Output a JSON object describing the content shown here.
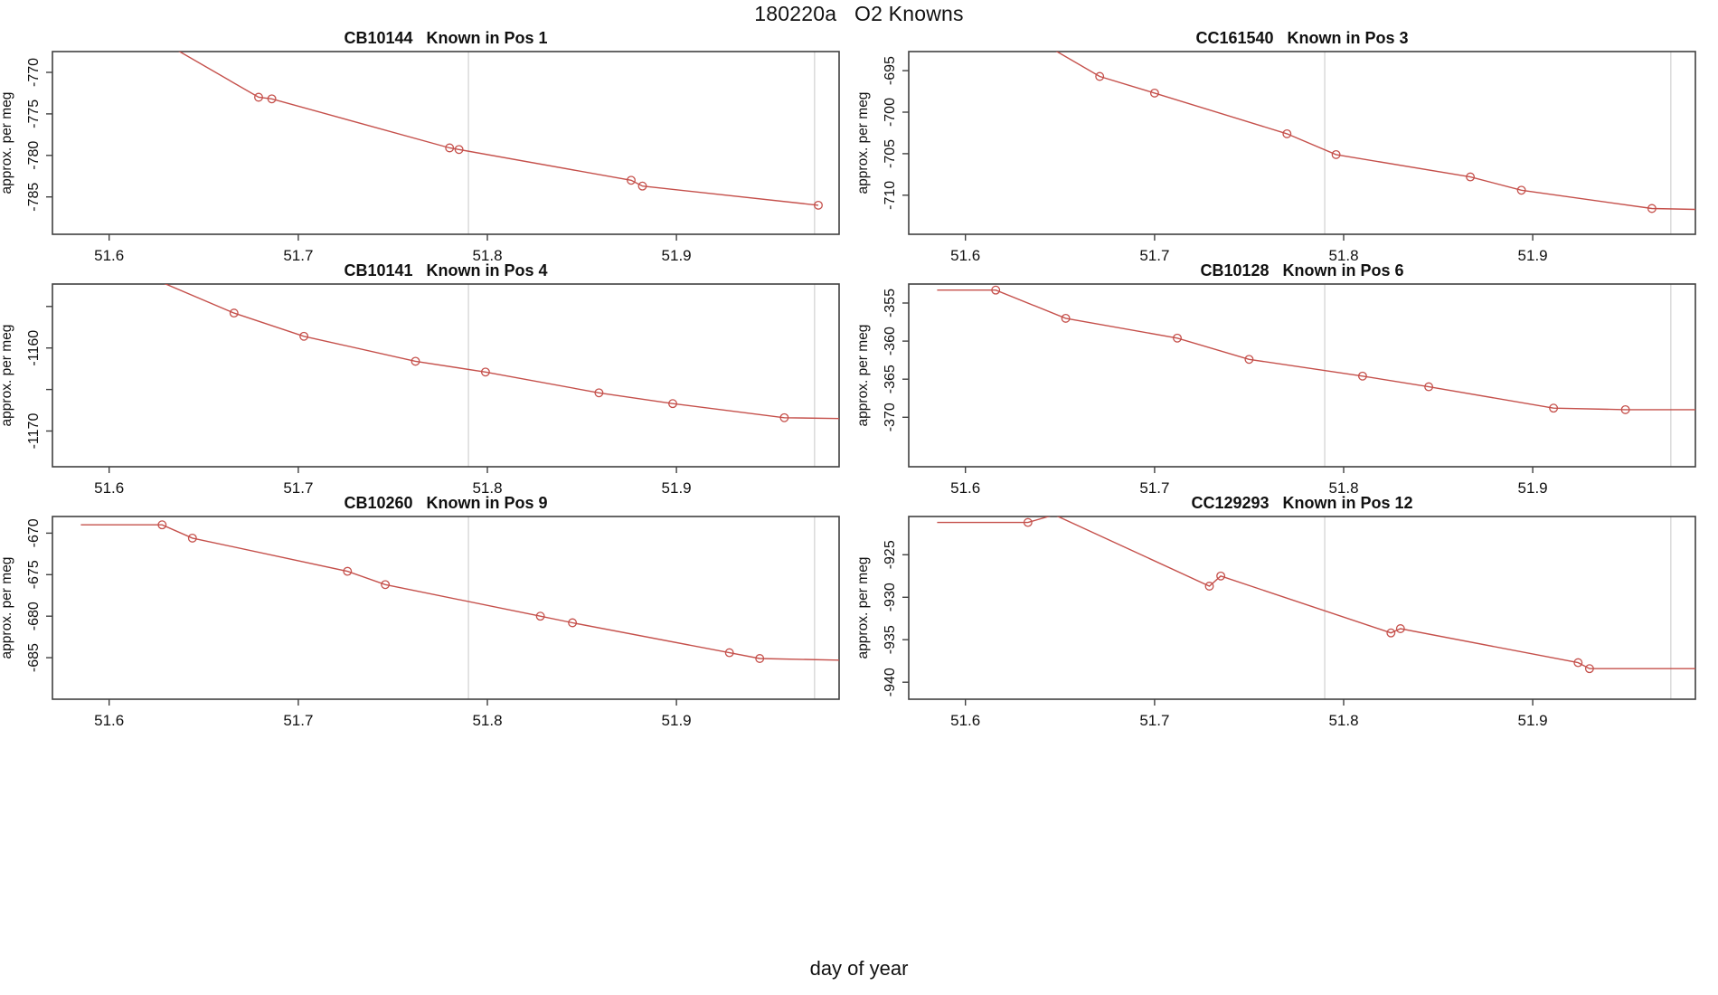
{
  "header": {
    "title": "180220a   O2 Knowns"
  },
  "footer": {
    "xlabel": "day of year"
  },
  "colors": {
    "line": "#C5504B",
    "grid": "#DCDCDC",
    "box": "#404040",
    "text": "#111111",
    "background": "#FFFFFF"
  },
  "chart_data": [
    {
      "type": "line",
      "id": "CB10144",
      "position_label": "Known in Pos 1",
      "title": "CB10144   Known in Pos 1",
      "ylabel": "approx. per meg",
      "grid_position": {
        "row": 0,
        "col": 0
      },
      "xlim": [
        51.57,
        51.986
      ],
      "ylim": [
        -789.5,
        -767.5
      ],
      "xticks": [
        51.6,
        51.7,
        51.8,
        51.9
      ],
      "xtick_labels": [
        "51.6",
        "51.7",
        "51.8",
        "51.9"
      ],
      "yticks": [
        -785,
        -780,
        -775,
        -770
      ],
      "ytick_labels": [
        "-785",
        "-780",
        "-775",
        "-770"
      ],
      "gridlines_x": [
        51.79,
        51.973
      ],
      "line": [
        [
          51.6,
          -762.6
        ],
        [
          51.679,
          -773.0
        ],
        [
          51.686,
          -773.2
        ],
        [
          51.78,
          -779.1
        ],
        [
          51.785,
          -779.3
        ],
        [
          51.876,
          -783.0
        ],
        [
          51.882,
          -783.7
        ],
        [
          51.975,
          -786.0
        ]
      ],
      "markers": [
        [
          51.679,
          -773.0
        ],
        [
          51.686,
          -773.2
        ],
        [
          51.78,
          -779.1
        ],
        [
          51.785,
          -779.3
        ],
        [
          51.876,
          -783.0
        ],
        [
          51.882,
          -783.7
        ],
        [
          51.975,
          -786.0
        ]
      ]
    },
    {
      "type": "line",
      "id": "CC161540",
      "position_label": "Known in Pos 3",
      "title": "CC161540   Known in Pos 3",
      "ylabel": "approx. per meg",
      "grid_position": {
        "row": 0,
        "col": 1
      },
      "xlim": [
        51.57,
        51.986
      ],
      "ylim": [
        -714.7,
        -692.7
      ],
      "xticks": [
        51.6,
        51.7,
        51.8,
        51.9
      ],
      "xtick_labels": [
        "51.6",
        "51.7",
        "51.8",
        "51.9"
      ],
      "yticks": [
        -710,
        -705,
        -700,
        -695
      ],
      "ytick_labels": [
        "-710",
        "-705",
        "-700",
        "-695"
      ],
      "gridlines_x": [
        51.79,
        51.973
      ],
      "line": [
        [
          51.6,
          -686.3
        ],
        [
          51.671,
          -695.7
        ],
        [
          51.7,
          -697.7
        ],
        [
          51.77,
          -702.6
        ],
        [
          51.796,
          -705.1
        ],
        [
          51.867,
          -707.8
        ],
        [
          51.894,
          -709.4
        ],
        [
          51.963,
          -711.6
        ],
        [
          51.986,
          -711.7
        ]
      ],
      "markers": [
        [
          51.671,
          -695.7
        ],
        [
          51.7,
          -697.7
        ],
        [
          51.77,
          -702.6
        ],
        [
          51.796,
          -705.1
        ],
        [
          51.867,
          -707.8
        ],
        [
          51.894,
          -709.4
        ],
        [
          51.963,
          -711.6
        ]
      ]
    },
    {
      "type": "line",
      "id": "CB10141",
      "position_label": "Known in Pos 4",
      "title": "CB10141   Known in Pos 4",
      "ylabel": "approx. per meg",
      "grid_position": {
        "row": 1,
        "col": 0
      },
      "xlim": [
        51.57,
        51.986
      ],
      "ylim": [
        -1174.3,
        -1152.3
      ],
      "xticks": [
        51.6,
        51.7,
        51.8,
        51.9
      ],
      "xtick_labels": [
        "51.6",
        "51.7",
        "51.8",
        "51.9"
      ],
      "yticks": [
        -1170,
        -1165,
        -1160,
        -1155
      ],
      "ytick_labels": [
        "-1170",
        "",
        "-1160",
        ""
      ],
      "gridlines_x": [
        51.79,
        51.973
      ],
      "line": [
        [
          51.6,
          -1149.4
        ],
        [
          51.666,
          -1155.8
        ],
        [
          51.703,
          -1158.6
        ],
        [
          51.762,
          -1161.6
        ],
        [
          51.799,
          -1162.9
        ],
        [
          51.859,
          -1165.4
        ],
        [
          51.898,
          -1166.7
        ],
        [
          51.957,
          -1168.4
        ],
        [
          51.986,
          -1168.5
        ]
      ],
      "markers": [
        [
          51.666,
          -1155.8
        ],
        [
          51.703,
          -1158.6
        ],
        [
          51.762,
          -1161.6
        ],
        [
          51.799,
          -1162.9
        ],
        [
          51.859,
          -1165.4
        ],
        [
          51.898,
          -1166.7
        ],
        [
          51.957,
          -1168.4
        ]
      ]
    },
    {
      "type": "line",
      "id": "CB10128",
      "position_label": "Known in Pos 6",
      "title": "CB10128   Known in Pos 6",
      "ylabel": "approx. per meg",
      "grid_position": {
        "row": 1,
        "col": 1
      },
      "xlim": [
        51.57,
        51.986
      ],
      "ylim": [
        -376.5,
        -352.5
      ],
      "xticks": [
        51.6,
        51.7,
        51.8,
        51.9
      ],
      "xtick_labels": [
        "51.6",
        "51.7",
        "51.8",
        "51.9"
      ],
      "yticks": [
        -370,
        -365,
        -360,
        -355
      ],
      "ytick_labels": [
        "-370",
        "-365",
        "-360",
        "-355"
      ],
      "gridlines_x": [
        51.79,
        51.973
      ],
      "line": [
        [
          51.585,
          -353.3
        ],
        [
          51.616,
          -353.3
        ],
        [
          51.653,
          -357.0
        ],
        [
          51.712,
          -359.6
        ],
        [
          51.75,
          -362.4
        ],
        [
          51.81,
          -364.6
        ],
        [
          51.845,
          -366.0
        ],
        [
          51.911,
          -368.8
        ],
        [
          51.949,
          -369.0
        ],
        [
          51.986,
          -369.0
        ]
      ],
      "markers": [
        [
          51.616,
          -353.3
        ],
        [
          51.653,
          -357.0
        ],
        [
          51.712,
          -359.6
        ],
        [
          51.75,
          -362.4
        ],
        [
          51.81,
          -364.6
        ],
        [
          51.845,
          -366.0
        ],
        [
          51.911,
          -368.8
        ],
        [
          51.949,
          -369.0
        ]
      ]
    },
    {
      "type": "line",
      "id": "CB10260",
      "position_label": "Known in Pos 9",
      "title": "CB10260   Known in Pos 9",
      "ylabel": "approx. per meg",
      "grid_position": {
        "row": 2,
        "col": 0
      },
      "xlim": [
        51.57,
        51.986
      ],
      "ylim": [
        -690.0,
        -668.0
      ],
      "xticks": [
        51.6,
        51.7,
        51.8,
        51.9
      ],
      "xtick_labels": [
        "51.6",
        "51.7",
        "51.8",
        "51.9"
      ],
      "yticks": [
        -685,
        -680,
        -675,
        -670
      ],
      "ytick_labels": [
        "-685",
        "-680",
        "-675",
        "-670"
      ],
      "gridlines_x": [
        51.79,
        51.973
      ],
      "line": [
        [
          51.585,
          -669.0
        ],
        [
          51.628,
          -669.0
        ],
        [
          51.644,
          -670.6
        ],
        [
          51.726,
          -674.6
        ],
        [
          51.746,
          -676.2
        ],
        [
          51.828,
          -680.0
        ],
        [
          51.845,
          -680.8
        ],
        [
          51.928,
          -684.4
        ],
        [
          51.944,
          -685.1
        ],
        [
          51.986,
          -685.3
        ]
      ],
      "markers": [
        [
          51.628,
          -669.0
        ],
        [
          51.644,
          -670.6
        ],
        [
          51.726,
          -674.6
        ],
        [
          51.746,
          -676.2
        ],
        [
          51.828,
          -680.0
        ],
        [
          51.845,
          -680.8
        ],
        [
          51.928,
          -684.4
        ],
        [
          51.944,
          -685.1
        ]
      ]
    },
    {
      "type": "line",
      "id": "CC129293",
      "position_label": "Known in Pos 12",
      "title": "CC129293   Known in Pos 12",
      "ylabel": "approx. per meg",
      "grid_position": {
        "row": 2,
        "col": 1
      },
      "xlim": [
        51.57,
        51.986
      ],
      "ylim": [
        -942.0,
        -920.5
      ],
      "xticks": [
        51.6,
        51.7,
        51.8,
        51.9
      ],
      "xtick_labels": [
        "51.6",
        "51.7",
        "51.8",
        "51.9"
      ],
      "yticks": [
        -940,
        -935,
        -930,
        -925
      ],
      "ytick_labels": [
        "-940",
        "-935",
        "-930",
        "-925"
      ],
      "gridlines_x": [
        51.79,
        51.973
      ],
      "line": [
        [
          51.585,
          -921.2
        ],
        [
          51.633,
          -921.2
        ],
        [
          51.647,
          -920.3
        ],
        [
          51.729,
          -928.7
        ],
        [
          51.735,
          -927.5
        ],
        [
          51.825,
          -934.2
        ],
        [
          51.83,
          -933.7
        ],
        [
          51.924,
          -937.7
        ],
        [
          51.93,
          -938.4
        ],
        [
          51.986,
          -938.4
        ]
      ],
      "markers": [
        [
          51.633,
          -921.2
        ],
        [
          51.729,
          -928.7
        ],
        [
          51.735,
          -927.5
        ],
        [
          51.825,
          -934.2
        ],
        [
          51.83,
          -933.7
        ],
        [
          51.924,
          -937.7
        ],
        [
          51.93,
          -938.4
        ]
      ]
    }
  ]
}
